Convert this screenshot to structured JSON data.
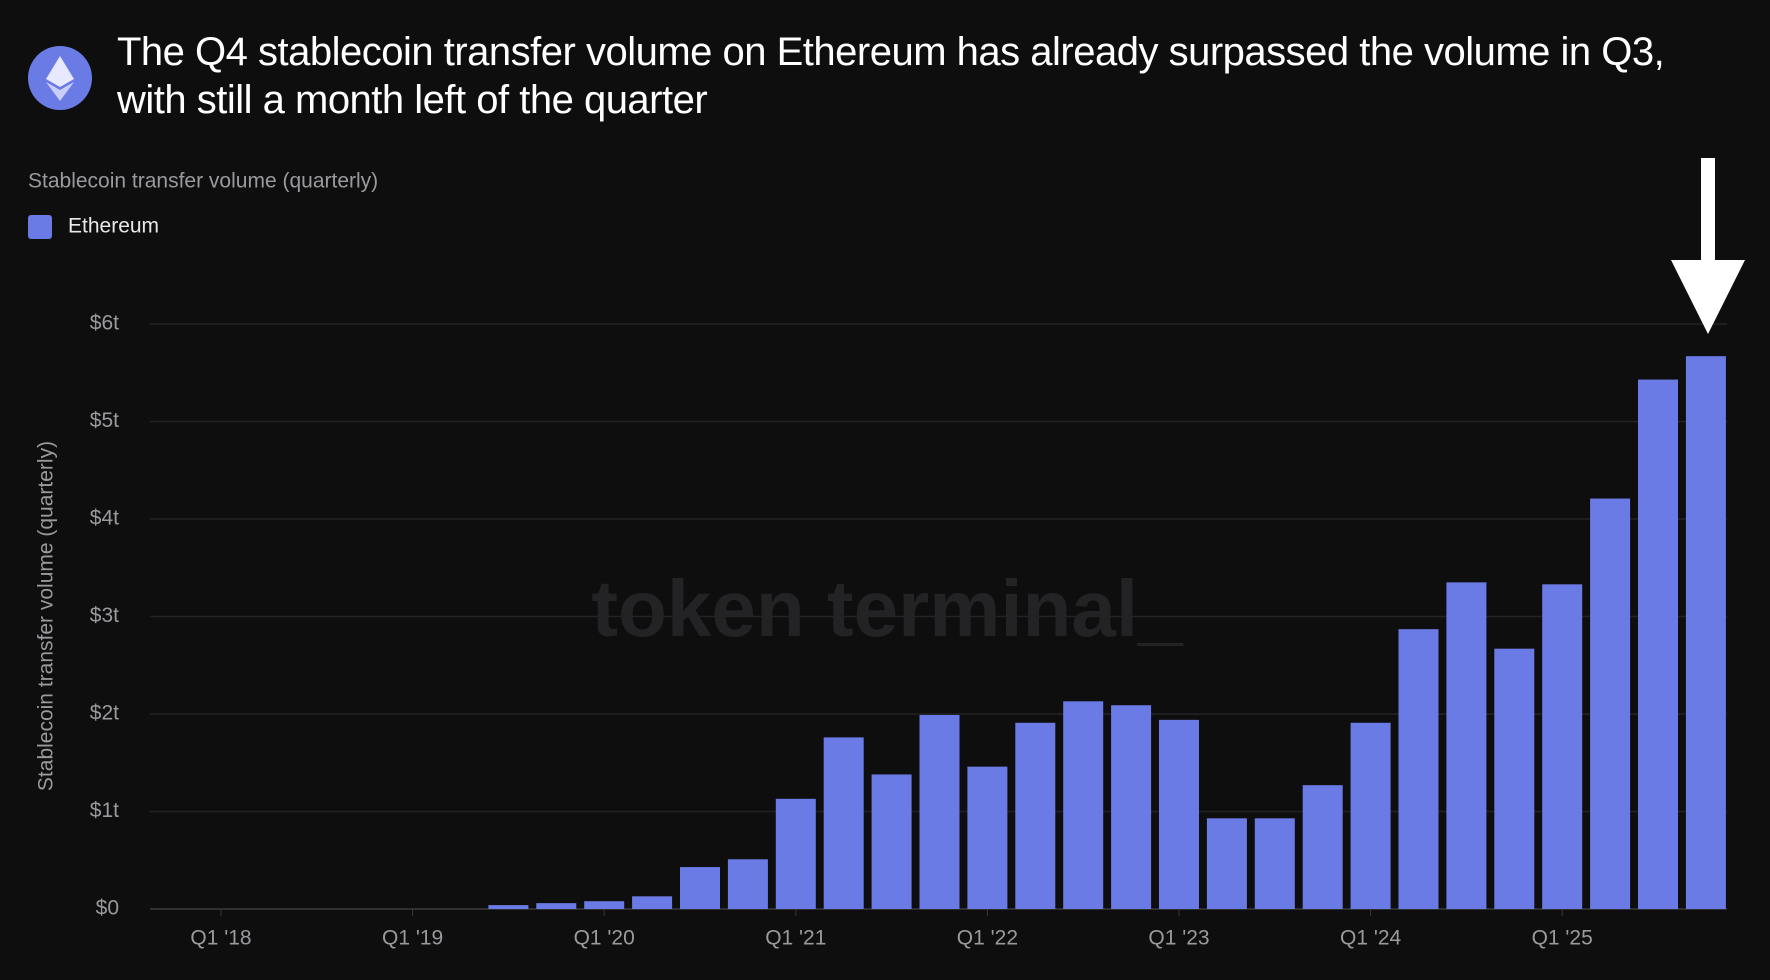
{
  "chart_data": {
    "type": "bar",
    "title": "The Q4 stablecoin transfer volume on Ethereum has already surpassed the volume in Q3, with still a month left of the quarter",
    "subtitle": "Stablecoin transfer volume (quarterly)",
    "y_label": "Stablecoin transfer volume (quarterly)",
    "watermark": "token terminal_",
    "categories": [
      "Q1 '18",
      null,
      null,
      null,
      "Q1 '19",
      null,
      null,
      null,
      "Q1 '20",
      null,
      null,
      null,
      "Q1 '21",
      null,
      null,
      null,
      "Q1 '22",
      null,
      null,
      null,
      "Q1 '23",
      null,
      null,
      null,
      "Q1 '24",
      null,
      null,
      null,
      "Q1 '25",
      null,
      null,
      null
    ],
    "series": [
      {
        "name": "Ethereum",
        "color": "#6b7be6",
        "values": [
          null,
          null,
          null,
          null,
          null,
          null,
          0.04,
          0.06,
          0.08,
          0.13,
          0.43,
          0.51,
          1.13,
          1.76,
          1.38,
          1.99,
          1.46,
          1.91,
          2.13,
          2.09,
          1.94,
          0.93,
          0.93,
          1.27,
          1.91,
          2.87,
          3.35,
          2.67,
          3.33,
          4.21,
          5.43,
          5.67
        ]
      }
    ],
    "ylim": [
      0,
      6
    ],
    "yticks": [
      {
        "value": 0,
        "label": "$0"
      },
      {
        "value": 1,
        "label": "$1t"
      },
      {
        "value": 2,
        "label": "$2t"
      },
      {
        "value": 3,
        "label": "$3t"
      },
      {
        "value": 4,
        "label": "$4t"
      },
      {
        "value": 5,
        "label": "$5t"
      },
      {
        "value": 6,
        "label": "$6t"
      }
    ],
    "grid": true
  }
}
